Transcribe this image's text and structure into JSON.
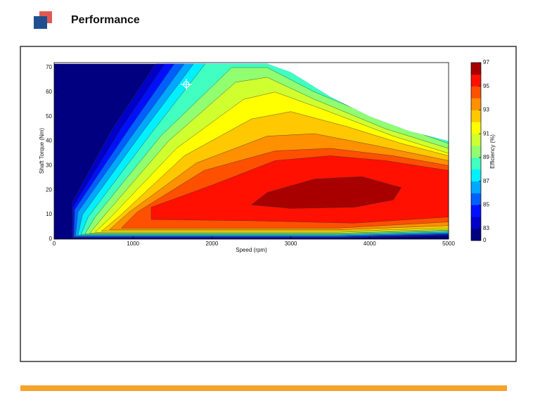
{
  "header": {
    "title": "Performance"
  },
  "chart_data": {
    "type": "contour",
    "xlabel": "Speed (rpm)",
    "ylabel": "Shaft Torque (Nm)",
    "xlim": [
      0,
      5000
    ],
    "xticks": [
      0,
      1000,
      2000,
      3000,
      4000,
      5000
    ],
    "ylim": [
      0,
      72
    ],
    "yticks": [
      0,
      10,
      20,
      30,
      40,
      50,
      60,
      70
    ],
    "envelope": {
      "level": 0,
      "x": [
        0,
        0,
        2700,
        3000,
        3500,
        4000,
        4500,
        5000,
        5000
      ],
      "y": [
        0,
        71.5,
        71.5,
        68,
        58,
        50,
        44,
        40,
        0
      ]
    },
    "regions": [
      {
        "level": 83,
        "x": [
          230,
          230,
          740,
          1360,
          5100,
          5100,
          3600
        ],
        "y": [
          0.3,
          15,
          45,
          75,
          75,
          1.5,
          0.3
        ]
      },
      {
        "level": 84,
        "x": [
          240,
          240,
          850,
          1480,
          5100,
          5100,
          3600
        ],
        "y": [
          0.6,
          13,
          45,
          75,
          75,
          1.8,
          0.6
        ]
      },
      {
        "level": 85,
        "x": [
          250,
          260,
          950,
          1600,
          5100,
          5100,
          3600
        ],
        "y": [
          0.9,
          12,
          45,
          75,
          75,
          2.1,
          0.9
        ]
      },
      {
        "level": 86,
        "x": [
          270,
          300,
          1050,
          1730,
          5100,
          5100,
          3600
        ],
        "y": [
          1.2,
          11,
          45,
          75,
          75,
          2.4,
          1.2
        ]
      },
      {
        "level": 87,
        "x": [
          300,
          360,
          1150,
          1850,
          5100,
          5100,
          3600
        ],
        "y": [
          1.5,
          10,
          45,
          75,
          75,
          2.7,
          1.5
        ]
      },
      {
        "level": 88,
        "x": [
          340,
          430,
          1250,
          2000,
          5100,
          5100,
          3600
        ],
        "y": [
          1.8,
          9,
          44,
          75,
          75,
          3,
          1.8
        ]
      },
      {
        "level": 89,
        "x": [
          390,
          520,
          1350,
          2250,
          2700,
          3300,
          4200,
          5000,
          5000,
          3600
        ],
        "y": [
          2.1,
          9,
          42,
          70,
          70,
          60,
          48,
          39,
          3.3,
          2.1
        ]
      },
      {
        "level": 90,
        "x": [
          450,
          620,
          1450,
          2300,
          2700,
          3300,
          4200,
          5000,
          5000,
          3600
        ],
        "y": [
          2.4,
          9,
          40,
          64,
          66,
          57,
          45,
          37,
          3.6,
          2.4
        ]
      },
      {
        "level": 91,
        "x": [
          520,
          720,
          1550,
          2400,
          2800,
          3400,
          4300,
          5000,
          5000,
          3600
        ],
        "y": [
          2.8,
          9,
          37,
          57,
          60,
          53,
          42,
          35,
          4,
          2.8
        ]
      },
      {
        "level": 92,
        "x": [
          600,
          850,
          1650,
          2500,
          3000,
          3700,
          4400,
          5000,
          5000,
          3600
        ],
        "y": [
          3.2,
          10,
          34,
          49,
          52,
          46,
          39,
          34,
          4.5,
          3.2
        ]
      },
      {
        "level": 93,
        "x": [
          700,
          950,
          1800,
          2700,
          3300,
          4100,
          5000,
          5000,
          3600
        ],
        "y": [
          3.8,
          11,
          31,
          42,
          43,
          38,
          32,
          5.5,
          3.8
        ]
      },
      {
        "level": 94,
        "x": [
          850,
          1050,
          1900,
          2800,
          3500,
          4300,
          5000,
          5000,
          3600
        ],
        "y": [
          4.5,
          11,
          28,
          36,
          37,
          34,
          30,
          7,
          4.5
        ]
      },
      {
        "level": 95,
        "x": [
          1230,
          1230,
          2000,
          2800,
          3500,
          4200,
          5000,
          5000,
          3800,
          2500
        ],
        "y": [
          8,
          13,
          22,
          32,
          34,
          32,
          28,
          9,
          6.5,
          7.5
        ]
      },
      {
        "level": 96,
        "x": [
          2500,
          2700,
          3300,
          3900,
          4400,
          4300,
          3800,
          3000
        ],
        "y": [
          14,
          19,
          24.5,
          25.5,
          21,
          16,
          13,
          12.5
        ]
      }
    ],
    "colorbar": {
      "label": "Efficiency (%)",
      "bounds": [
        0,
        83,
        84,
        85,
        86,
        87,
        88,
        89,
        90,
        91,
        92,
        93,
        94,
        95,
        96,
        97
      ],
      "colors": [
        "#000080",
        "#0000c8",
        "#0010ff",
        "#0060ff",
        "#00a8ff",
        "#00f0ff",
        "#40ffc0",
        "#90ff70",
        "#d0ff30",
        "#ffff00",
        "#ffc800",
        "#ff9000",
        "#ff5000",
        "#ff1000",
        "#a80000"
      ],
      "ticks": [
        0,
        83,
        85,
        87,
        89,
        91,
        93,
        95,
        97
      ]
    }
  }
}
